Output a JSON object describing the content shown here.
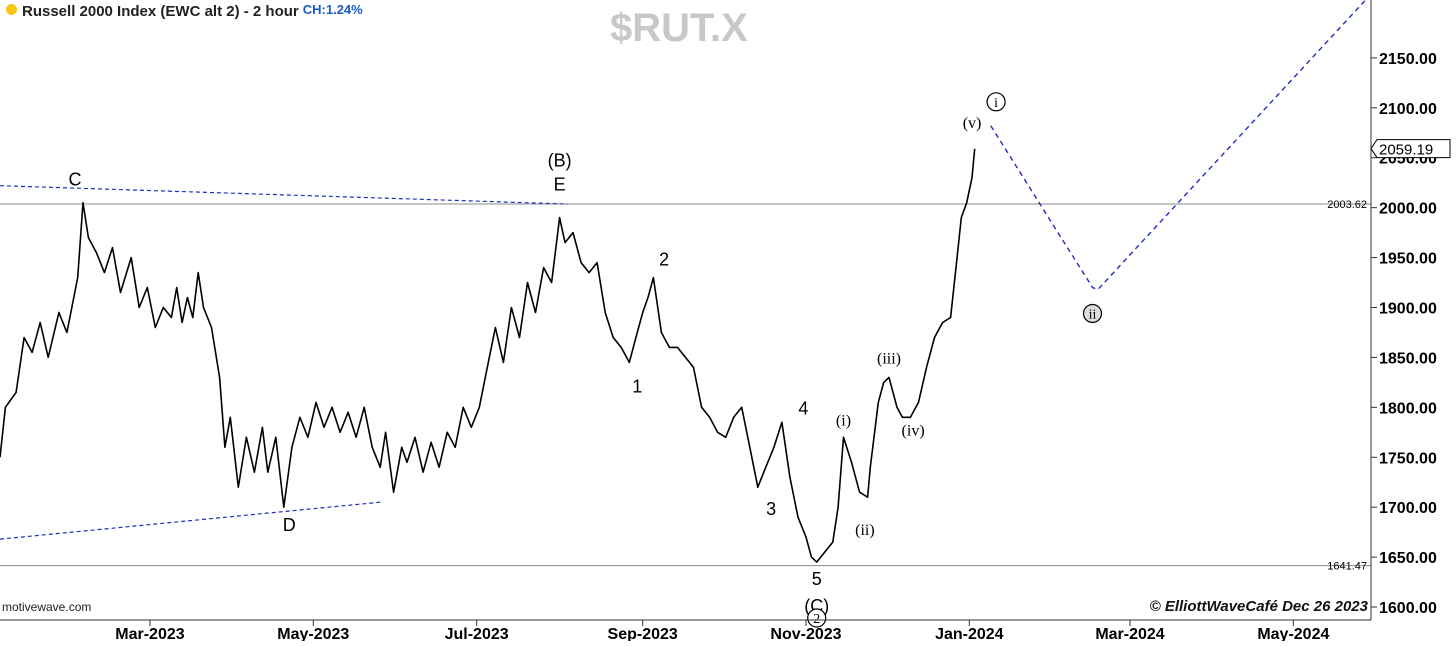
{
  "header": {
    "title": "Russell 2000 Index (EWC alt 2) - 2 hour",
    "change": "CH:1.24%",
    "dot_color": "#f5c518",
    "change_color": "#1a5bc8"
  },
  "ticker": "$RUT.X",
  "watermark": "motivewave.com",
  "copyright": "© ElliottWaveCafé Dec 26 2023",
  "chart_data": {
    "type": "line",
    "title": "Russell 2000 Index (EWC alt 2) - 2 hour",
    "xlabel": "",
    "ylabel": "",
    "ylim": [
      1587,
      2208
    ],
    "xlim": [
      "2023-01-04",
      "2024-05-30"
    ],
    "x_ticks": [
      {
        "date": "2023-03-01",
        "label": "Mar-2023"
      },
      {
        "date": "2023-05-01",
        "label": "May-2023"
      },
      {
        "date": "2023-07-01",
        "label": "Jul-2023"
      },
      {
        "date": "2023-09-01",
        "label": "Sep-2023"
      },
      {
        "date": "2023-11-01",
        "label": "Nov-2023"
      },
      {
        "date": "2024-01-01",
        "label": "Jan-2024"
      },
      {
        "date": "2024-03-01",
        "label": "Mar-2024"
      },
      {
        "date": "2024-05-01",
        "label": "May-2024"
      }
    ],
    "y_ticks": [
      {
        "value": 1600,
        "label": "1600.00"
      },
      {
        "value": 1650,
        "label": "1650.00"
      },
      {
        "value": 1700,
        "label": "1700.00"
      },
      {
        "value": 1750,
        "label": "1750.00"
      },
      {
        "value": 1800,
        "label": "1800.00"
      },
      {
        "value": 1850,
        "label": "1850.00"
      },
      {
        "value": 1900,
        "label": "1900.00"
      },
      {
        "value": 1950,
        "label": "1950.00"
      },
      {
        "value": 2000,
        "label": "2000.00"
      },
      {
        "value": 2050,
        "label": "2050.00"
      },
      {
        "value": 2100,
        "label": "2100.00"
      },
      {
        "value": 2150,
        "label": "2150.00"
      }
    ],
    "last_price": {
      "value": 2059.19,
      "label": "2059.19"
    },
    "levels": [
      {
        "value": 2003.62,
        "label": "2003.62"
      },
      {
        "value": 1641.47,
        "label": "1641.47"
      }
    ],
    "series": [
      {
        "color": "#000000",
        "points": [
          [
            "2023-01-04",
            1750
          ],
          [
            "2023-01-06",
            1800
          ],
          [
            "2023-01-10",
            1815
          ],
          [
            "2023-01-13",
            1870
          ],
          [
            "2023-01-16",
            1855
          ],
          [
            "2023-01-19",
            1885
          ],
          [
            "2023-01-22",
            1850
          ],
          [
            "2023-01-26",
            1895
          ],
          [
            "2023-01-29",
            1875
          ],
          [
            "2023-02-02",
            1930
          ],
          [
            "2023-02-04",
            2005
          ],
          [
            "2023-02-06",
            1970
          ],
          [
            "2023-02-09",
            1955
          ],
          [
            "2023-02-12",
            1935
          ],
          [
            "2023-02-15",
            1960
          ],
          [
            "2023-02-18",
            1915
          ],
          [
            "2023-02-22",
            1950
          ],
          [
            "2023-02-25",
            1900
          ],
          [
            "2023-02-28",
            1920
          ],
          [
            "2023-03-03",
            1880
          ],
          [
            "2023-03-06",
            1900
          ],
          [
            "2023-03-09",
            1890
          ],
          [
            "2023-03-11",
            1920
          ],
          [
            "2023-03-13",
            1885
          ],
          [
            "2023-03-15",
            1910
          ],
          [
            "2023-03-17",
            1890
          ],
          [
            "2023-03-19",
            1935
          ],
          [
            "2023-03-21",
            1900
          ],
          [
            "2023-03-24",
            1880
          ],
          [
            "2023-03-27",
            1830
          ],
          [
            "2023-03-29",
            1760
          ],
          [
            "2023-03-31",
            1790
          ],
          [
            "2023-04-03",
            1720
          ],
          [
            "2023-04-06",
            1770
          ],
          [
            "2023-04-09",
            1735
          ],
          [
            "2023-04-12",
            1780
          ],
          [
            "2023-04-14",
            1735
          ],
          [
            "2023-04-17",
            1770
          ],
          [
            "2023-04-20",
            1700
          ],
          [
            "2023-04-23",
            1760
          ],
          [
            "2023-04-26",
            1790
          ],
          [
            "2023-04-29",
            1770
          ],
          [
            "2023-05-02",
            1805
          ],
          [
            "2023-05-05",
            1780
          ],
          [
            "2023-05-08",
            1800
          ],
          [
            "2023-05-11",
            1775
          ],
          [
            "2023-05-14",
            1795
          ],
          [
            "2023-05-17",
            1770
          ],
          [
            "2023-05-20",
            1800
          ],
          [
            "2023-05-23",
            1760
          ],
          [
            "2023-05-26",
            1740
          ],
          [
            "2023-05-28",
            1775
          ],
          [
            "2023-05-31",
            1715
          ],
          [
            "2023-06-03",
            1760
          ],
          [
            "2023-06-05",
            1745
          ],
          [
            "2023-06-08",
            1770
          ],
          [
            "2023-06-11",
            1735
          ],
          [
            "2023-06-14",
            1765
          ],
          [
            "2023-06-17",
            1740
          ],
          [
            "2023-06-20",
            1775
          ],
          [
            "2023-06-23",
            1760
          ],
          [
            "2023-06-26",
            1800
          ],
          [
            "2023-06-29",
            1780
          ],
          [
            "2023-07-02",
            1800
          ],
          [
            "2023-07-05",
            1840
          ],
          [
            "2023-07-08",
            1880
          ],
          [
            "2023-07-11",
            1845
          ],
          [
            "2023-07-14",
            1900
          ],
          [
            "2023-07-17",
            1870
          ],
          [
            "2023-07-20",
            1925
          ],
          [
            "2023-07-23",
            1895
          ],
          [
            "2023-07-26",
            1940
          ],
          [
            "2023-07-29",
            1925
          ],
          [
            "2023-08-01",
            1990
          ],
          [
            "2023-08-03",
            1965
          ],
          [
            "2023-08-06",
            1975
          ],
          [
            "2023-08-09",
            1945
          ],
          [
            "2023-08-12",
            1935
          ],
          [
            "2023-08-15",
            1945
          ],
          [
            "2023-08-18",
            1895
          ],
          [
            "2023-08-21",
            1870
          ],
          [
            "2023-08-24",
            1860
          ],
          [
            "2023-08-27",
            1845
          ],
          [
            "2023-08-29",
            1865
          ],
          [
            "2023-09-01",
            1895
          ],
          [
            "2023-09-03",
            1910
          ],
          [
            "2023-09-05",
            1930
          ],
          [
            "2023-09-08",
            1875
          ],
          [
            "2023-09-11",
            1860
          ],
          [
            "2023-09-14",
            1860
          ],
          [
            "2023-09-17",
            1850
          ],
          [
            "2023-09-20",
            1840
          ],
          [
            "2023-09-23",
            1800
          ],
          [
            "2023-09-26",
            1790
          ],
          [
            "2023-09-29",
            1775
          ],
          [
            "2023-10-02",
            1770
          ],
          [
            "2023-10-05",
            1790
          ],
          [
            "2023-10-08",
            1800
          ],
          [
            "2023-10-11",
            1760
          ],
          [
            "2023-10-14",
            1720
          ],
          [
            "2023-10-17",
            1740
          ],
          [
            "2023-10-20",
            1760
          ],
          [
            "2023-10-23",
            1785
          ],
          [
            "2023-10-26",
            1730
          ],
          [
            "2023-10-29",
            1690
          ],
          [
            "2023-11-01",
            1670
          ],
          [
            "2023-11-03",
            1650
          ],
          [
            "2023-11-05",
            1645
          ],
          [
            "2023-11-08",
            1655
          ],
          [
            "2023-11-11",
            1665
          ],
          [
            "2023-11-13",
            1700
          ],
          [
            "2023-11-15",
            1770
          ],
          [
            "2023-11-18",
            1745
          ],
          [
            "2023-11-21",
            1715
          ],
          [
            "2023-11-24",
            1710
          ],
          [
            "2023-11-25",
            1740
          ],
          [
            "2023-11-28",
            1805
          ],
          [
            "2023-11-30",
            1825
          ],
          [
            "2023-12-02",
            1830
          ],
          [
            "2023-12-05",
            1800
          ],
          [
            "2023-12-07",
            1790
          ],
          [
            "2023-12-10",
            1790
          ],
          [
            "2023-12-13",
            1805
          ],
          [
            "2023-12-16",
            1840
          ],
          [
            "2023-12-19",
            1870
          ],
          [
            "2023-12-22",
            1885
          ],
          [
            "2023-12-25",
            1890
          ],
          [
            "2023-12-27",
            1940
          ],
          [
            "2023-12-29",
            1990
          ],
          [
            "2023-12-31",
            2005
          ],
          [
            "2024-01-02",
            2030
          ],
          [
            "2024-01-03",
            2059
          ]
        ]
      }
    ],
    "trendlines": [
      {
        "from": [
          "2023-01-04",
          2022
        ],
        "to": [
          "2023-08-04",
          2003.62
        ]
      },
      {
        "from": [
          "2023-01-04",
          1668
        ],
        "to": [
          "2023-05-26",
          1705
        ]
      }
    ],
    "projection": [
      [
        "2024-01-09",
        2082
      ],
      [
        "2024-02-16",
        1920
      ],
      [
        "2024-02-18",
        1918
      ],
      [
        "2024-05-28",
        2208
      ]
    ],
    "wave_labels": [
      {
        "text": "C",
        "date": "2023-02-01",
        "price": 2022,
        "style": "sans"
      },
      {
        "text": "D",
        "date": "2023-04-22",
        "price": 1676,
        "style": "sans"
      },
      {
        "text": "(B)",
        "date": "2023-08-01",
        "price": 2041,
        "style": "sans"
      },
      {
        "text": "E",
        "date": "2023-08-01",
        "price": 2017,
        "style": "sans"
      },
      {
        "text": "1",
        "date": "2023-08-30",
        "price": 1815,
        "style": "sans"
      },
      {
        "text": "2",
        "date": "2023-09-09",
        "price": 1942,
        "style": "sans"
      },
      {
        "text": "3",
        "date": "2023-10-19",
        "price": 1692,
        "style": "sans"
      },
      {
        "text": "4",
        "date": "2023-10-31",
        "price": 1793,
        "style": "sans"
      },
      {
        "text": "5",
        "date": "2023-11-05",
        "price": 1622,
        "style": "sans"
      },
      {
        "text": "(C)",
        "date": "2023-11-05",
        "price": 1595,
        "style": "sans"
      },
      {
        "text": "(i)",
        "date": "2023-11-15",
        "price": 1782,
        "style": "serif"
      },
      {
        "text": "(ii)",
        "date": "2023-11-23",
        "price": 1672,
        "style": "serif"
      },
      {
        "text": "(iii)",
        "date": "2023-12-02",
        "price": 1844,
        "style": "serif"
      },
      {
        "text": "(iv)",
        "date": "2023-12-11",
        "price": 1772,
        "style": "serif"
      },
      {
        "text": "(v)",
        "date": "2024-01-02",
        "price": 2080,
        "style": "serif"
      }
    ],
    "circled_labels": [
      {
        "text": "2",
        "date": "2023-11-05",
        "price": 1589,
        "fill": "#ffffff"
      },
      {
        "text": "i",
        "date": "2024-01-11",
        "price": 2106,
        "fill": "#ffffff"
      },
      {
        "text": "ii",
        "date": "2024-02-16",
        "price": 1894,
        "fill": "#dddddd"
      }
    ]
  }
}
